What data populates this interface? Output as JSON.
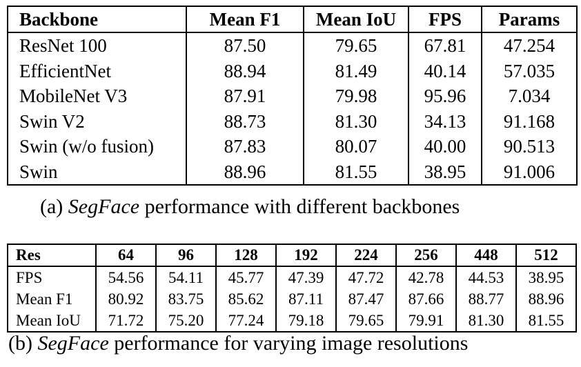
{
  "table_a": {
    "headers": [
      "Backbone",
      "Mean F1",
      "Mean IoU",
      "FPS",
      "Params"
    ],
    "rows": [
      [
        "ResNet 100",
        "87.50",
        "79.65",
        "67.81",
        "47.254"
      ],
      [
        "EfficientNet",
        "88.94",
        "81.49",
        "40.14",
        "57.035"
      ],
      [
        "MobileNet V3",
        "87.91",
        "79.98",
        "95.96",
        "7.034"
      ],
      [
        "Swin V2",
        "88.73",
        "81.30",
        "34.13",
        "91.168"
      ],
      [
        "Swin (w/o fusion)",
        "87.83",
        "80.07",
        "40.00",
        "90.513"
      ],
      [
        "Swin",
        "88.96",
        "81.55",
        "38.95",
        "91.006"
      ]
    ]
  },
  "caption_a": {
    "prefix": "(a) ",
    "name": "SegFace",
    "suffix": " performance with different backbones"
  },
  "table_b": {
    "headers": [
      "Res",
      "64",
      "96",
      "128",
      "192",
      "224",
      "256",
      "448",
      "512"
    ],
    "rows": [
      [
        "FPS",
        "54.56",
        "54.11",
        "45.77",
        "47.39",
        "47.72",
        "42.78",
        "44.53",
        "38.95"
      ],
      [
        "Mean F1",
        "80.92",
        "83.75",
        "85.62",
        "87.11",
        "87.47",
        "87.66",
        "88.77",
        "88.96"
      ],
      [
        "Mean IoU",
        "71.72",
        "75.20",
        "77.24",
        "79.18",
        "79.65",
        "79.91",
        "81.30",
        "81.55"
      ]
    ]
  },
  "caption_b": {
    "prefix": "(b) ",
    "name": "SegFace",
    "suffix": " performance for varying image resolutions"
  }
}
